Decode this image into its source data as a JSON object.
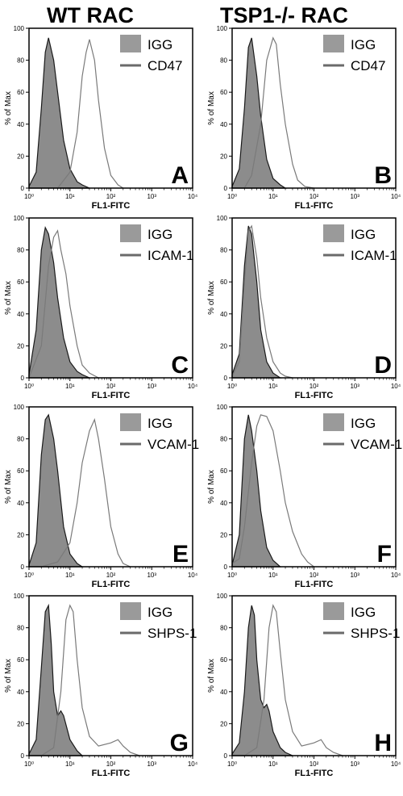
{
  "headers": {
    "left": "WT RAC",
    "right": "TSP1-/- RAC"
  },
  "colors": {
    "filled": "#8c8c8c",
    "filled_stroke": "#1a1a1a",
    "line": "#7a7a7a",
    "legend_swatch": "#9a9a9a",
    "legend_line": "#6a6a6a"
  },
  "chart_data": [
    {
      "type": "area",
      "panel": "A",
      "xlabel": "FL1-FITC",
      "ylabel": "% of Max",
      "xscale": "log",
      "xlim": [
        1,
        10000
      ],
      "ylim": [
        0,
        100
      ],
      "xticks": [
        "10⁰",
        "10¹",
        "10²",
        "10³",
        "10⁴"
      ],
      "yticks": [
        "0",
        "20",
        "40",
        "60",
        "80",
        "100"
      ],
      "legend": [
        "IGG",
        "CD47"
      ],
      "series": [
        {
          "name": "IGG",
          "x": [
            1,
            1.5,
            2,
            2.5,
            3,
            4,
            5,
            7,
            10,
            15,
            20,
            30
          ],
          "y": [
            1,
            10,
            50,
            85,
            94,
            80,
            60,
            30,
            12,
            4,
            2,
            0
          ]
        },
        {
          "name": "CD47",
          "x": [
            5,
            10,
            15,
            20,
            25,
            30,
            40,
            50,
            70,
            100,
            150,
            200
          ],
          "y": [
            0,
            10,
            35,
            70,
            85,
            93,
            80,
            55,
            25,
            8,
            2,
            0
          ]
        }
      ]
    },
    {
      "type": "area",
      "panel": "B",
      "xlabel": "FL1-FITC",
      "ylabel": "% of Max",
      "xscale": "log",
      "xlim": [
        1,
        10000
      ],
      "ylim": [
        0,
        100
      ],
      "xticks": [
        "10⁰",
        "10¹",
        "10²",
        "10³",
        "10⁴"
      ],
      "yticks": [
        "0",
        "20",
        "40",
        "60",
        "80",
        "100"
      ],
      "legend": [
        "IGG",
        "CD47"
      ],
      "series": [
        {
          "name": "IGG",
          "x": [
            1,
            1.5,
            2,
            2.5,
            3,
            4,
            5,
            7,
            10,
            15,
            20
          ],
          "y": [
            1,
            12,
            50,
            88,
            94,
            70,
            45,
            18,
            6,
            2,
            0
          ]
        },
        {
          "name": "CD47",
          "x": [
            2,
            3,
            5,
            7,
            10,
            12,
            15,
            20,
            30,
            40,
            60,
            100
          ],
          "y": [
            0,
            8,
            40,
            80,
            94,
            90,
            65,
            40,
            15,
            5,
            1,
            0
          ]
        }
      ]
    },
    {
      "type": "area",
      "panel": "C",
      "xlabel": "FL1-FITC",
      "ylabel": "% of Max",
      "xscale": "log",
      "xlim": [
        1,
        10000
      ],
      "ylim": [
        0,
        100
      ],
      "xticks": [
        "10⁰",
        "10¹",
        "10²",
        "10³",
        "10⁴"
      ],
      "yticks": [
        "0",
        "20",
        "40",
        "60",
        "80",
        "100"
      ],
      "legend": [
        "IGG",
        "ICAM-1"
      ],
      "series": [
        {
          "name": "IGG",
          "x": [
            1,
            1.5,
            2,
            2.5,
            3,
            4,
            5,
            7,
            10,
            15,
            20,
            30
          ],
          "y": [
            2,
            30,
            80,
            94,
            90,
            72,
            50,
            25,
            10,
            4,
            2,
            0
          ]
        },
        {
          "name": "ICAM-1",
          "x": [
            1,
            2,
            3,
            4,
            5,
            6,
            8,
            10,
            15,
            20,
            30,
            50
          ],
          "y": [
            0,
            20,
            70,
            88,
            92,
            80,
            65,
            45,
            20,
            8,
            3,
            0
          ]
        }
      ]
    },
    {
      "type": "area",
      "panel": "D",
      "xlabel": "FL1-FITC",
      "ylabel": "% of Max",
      "xscale": "log",
      "xlim": [
        1,
        10000
      ],
      "ylim": [
        0,
        100
      ],
      "xticks": [
        "10⁰",
        "10¹",
        "10²",
        "10³",
        "10⁴"
      ],
      "yticks": [
        "0",
        "20",
        "40",
        "60",
        "80",
        "100"
      ],
      "legend": [
        "IGG",
        "ICAM-1"
      ],
      "series": [
        {
          "name": "IGG",
          "x": [
            1,
            1.5,
            2,
            2.5,
            3,
            4,
            5,
            7,
            10,
            15
          ],
          "y": [
            2,
            15,
            70,
            95,
            90,
            60,
            30,
            10,
            3,
            0
          ]
        },
        {
          "name": "ICAM-1",
          "x": [
            1,
            1.5,
            2,
            2.5,
            3,
            4,
            5,
            7,
            10,
            15,
            20,
            30
          ],
          "y": [
            1,
            10,
            60,
            92,
            95,
            75,
            50,
            25,
            10,
            3,
            1,
            0
          ]
        }
      ]
    },
    {
      "type": "area",
      "panel": "E",
      "xlabel": "FL1-FITC",
      "ylabel": "% of Max",
      "xscale": "log",
      "xlim": [
        1,
        10000
      ],
      "ylim": [
        0,
        100
      ],
      "xticks": [
        "10⁰",
        "10¹",
        "10²",
        "10³",
        "10⁴"
      ],
      "yticks": [
        "0",
        "20",
        "40",
        "60",
        "80",
        "100"
      ],
      "legend": [
        "IGG",
        "VCAM-1"
      ],
      "series": [
        {
          "name": "IGG",
          "x": [
            1,
            1.5,
            2,
            2.5,
            3,
            4,
            5,
            7,
            10,
            15,
            20
          ],
          "y": [
            1,
            15,
            70,
            92,
            95,
            80,
            60,
            25,
            8,
            2,
            0
          ]
        },
        {
          "name": "VCAM-1",
          "x": [
            2,
            5,
            10,
            15,
            20,
            30,
            40,
            50,
            70,
            100,
            150,
            200,
            300
          ],
          "y": [
            0,
            3,
            15,
            40,
            65,
            85,
            92,
            80,
            55,
            25,
            8,
            2,
            0
          ]
        }
      ]
    },
    {
      "type": "area",
      "panel": "F",
      "xlabel": "FL1-FITC",
      "ylabel": "% of Max",
      "xscale": "log",
      "xlim": [
        1,
        10000
      ],
      "ylim": [
        0,
        100
      ],
      "xticks": [
        "10⁰",
        "10¹",
        "10²",
        "10³",
        "10⁴"
      ],
      "yticks": [
        "0",
        "20",
        "40",
        "60",
        "80",
        "100"
      ],
      "legend": [
        "IGG",
        "VCAM-1"
      ],
      "series": [
        {
          "name": "IGG",
          "x": [
            1,
            1.5,
            2,
            2.5,
            3,
            4,
            5,
            7,
            10,
            15
          ],
          "y": [
            1,
            20,
            80,
            95,
            85,
            60,
            35,
            12,
            4,
            0
          ]
        },
        {
          "name": "VCAM-1",
          "x": [
            1,
            1.5,
            2,
            3,
            4,
            5,
            7,
            10,
            15,
            20,
            30,
            50,
            70,
            100
          ],
          "y": [
            2,
            5,
            25,
            65,
            88,
            95,
            94,
            85,
            60,
            40,
            22,
            8,
            3,
            0
          ]
        }
      ]
    },
    {
      "type": "area",
      "panel": "G",
      "xlabel": "FL1-FITC",
      "ylabel": "% of Max",
      "xscale": "log",
      "xlim": [
        1,
        10000
      ],
      "ylim": [
        0,
        100
      ],
      "xticks": [
        "10⁰",
        "10¹",
        "10²",
        "10³",
        "10⁴"
      ],
      "yticks": [
        "0",
        "20",
        "40",
        "60",
        "80",
        "100"
      ],
      "legend": [
        "IGG",
        "SHPS-1"
      ],
      "series": [
        {
          "name": "IGG",
          "x": [
            1,
            1.5,
            2,
            2.5,
            3,
            3.5,
            4,
            5,
            6,
            7,
            10,
            15,
            20
          ],
          "y": [
            1,
            10,
            55,
            90,
            94,
            70,
            40,
            25,
            28,
            25,
            10,
            3,
            0
          ]
        },
        {
          "name": "SHPS-1",
          "x": [
            2,
            4,
            6,
            8,
            10,
            12,
            15,
            20,
            30,
            50,
            100,
            150,
            200,
            300,
            500
          ],
          "y": [
            0,
            5,
            40,
            85,
            94,
            90,
            60,
            30,
            12,
            6,
            8,
            10,
            6,
            2,
            0
          ]
        }
      ]
    },
    {
      "type": "area",
      "panel": "H",
      "xlabel": "FL1-FITC",
      "ylabel": "% of Max",
      "xscale": "log",
      "xlim": [
        1,
        10000
      ],
      "ylim": [
        0,
        100
      ],
      "xticks": [
        "10⁰",
        "10¹",
        "10²",
        "10³",
        "10⁴"
      ],
      "yticks": [
        "0",
        "20",
        "40",
        "60",
        "80",
        "100"
      ],
      "legend": [
        "IGG",
        "SHPS-1"
      ],
      "series": [
        {
          "name": "IGG",
          "x": [
            1,
            1.5,
            2,
            2.5,
            3,
            3.5,
            4,
            5,
            6,
            7,
            8,
            10,
            15,
            20,
            30
          ],
          "y": [
            1,
            8,
            40,
            80,
            94,
            88,
            60,
            35,
            30,
            32,
            28,
            15,
            5,
            2,
            0
          ]
        },
        {
          "name": "SHPS-1",
          "x": [
            2,
            4,
            6,
            8,
            10,
            12,
            15,
            20,
            30,
            50,
            100,
            150,
            200,
            300,
            500
          ],
          "y": [
            0,
            5,
            35,
            80,
            94,
            90,
            65,
            35,
            15,
            6,
            8,
            10,
            5,
            2,
            0
          ]
        }
      ]
    }
  ]
}
